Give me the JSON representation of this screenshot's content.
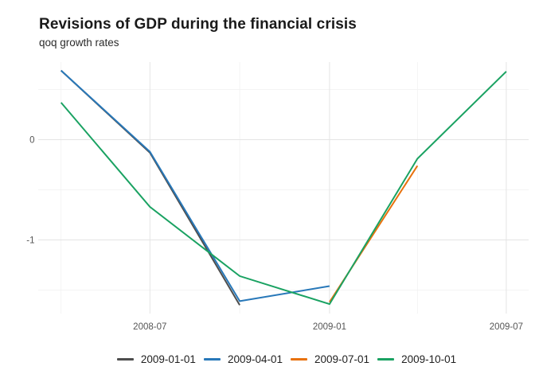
{
  "chart_data": {
    "type": "line",
    "title": "Revisions of GDP during the financial crisis",
    "subtitle": "qoq growth rates",
    "grid": true,
    "legend_position": "bottom",
    "x_axis": {
      "range": [
        "2008-04",
        "2009-07"
      ],
      "ticks": [
        {
          "date": "2008-07",
          "label": "2008-07"
        },
        {
          "date": "2009-01",
          "label": "2009-01"
        },
        {
          "date": "2009-07",
          "label": "2009-07"
        }
      ],
      "minor_gridlines": [
        "2008-04",
        "2008-10",
        "2009-04"
      ]
    },
    "y_axis": {
      "range": [
        -1.73,
        0.77
      ],
      "ticks": [
        {
          "value": 0,
          "label": "0"
        },
        {
          "value": -1,
          "label": "-1"
        }
      ],
      "minor_gridlines": [
        0.5,
        -0.5,
        -1.5
      ]
    },
    "series": [
      {
        "name": "2009-01-01",
        "color": "#4d4d4d",
        "points": [
          {
            "x": "2008-04",
            "y": 0.69
          },
          {
            "x": "2008-07",
            "y": -0.13
          },
          {
            "x": "2008-10",
            "y": -1.65
          }
        ]
      },
      {
        "name": "2009-04-01",
        "color": "#2878b9",
        "points": [
          {
            "x": "2008-04",
            "y": 0.69
          },
          {
            "x": "2008-07",
            "y": -0.12
          },
          {
            "x": "2008-10",
            "y": -1.61
          },
          {
            "x": "2009-01",
            "y": -1.46
          }
        ]
      },
      {
        "name": "2009-07-01",
        "color": "#e8710d",
        "points": [
          {
            "x": "2009-01",
            "y": -1.62
          },
          {
            "x": "2009-04",
            "y": -0.26
          }
        ]
      },
      {
        "name": "2009-10-01",
        "color": "#1aa262",
        "points": [
          {
            "x": "2008-04",
            "y": 0.37
          },
          {
            "x": "2008-07",
            "y": -0.67
          },
          {
            "x": "2008-10",
            "y": -1.36
          },
          {
            "x": "2009-01",
            "y": -1.64
          },
          {
            "x": "2009-04",
            "y": -0.19
          },
          {
            "x": "2009-07",
            "y": 0.68
          }
        ]
      }
    ]
  }
}
